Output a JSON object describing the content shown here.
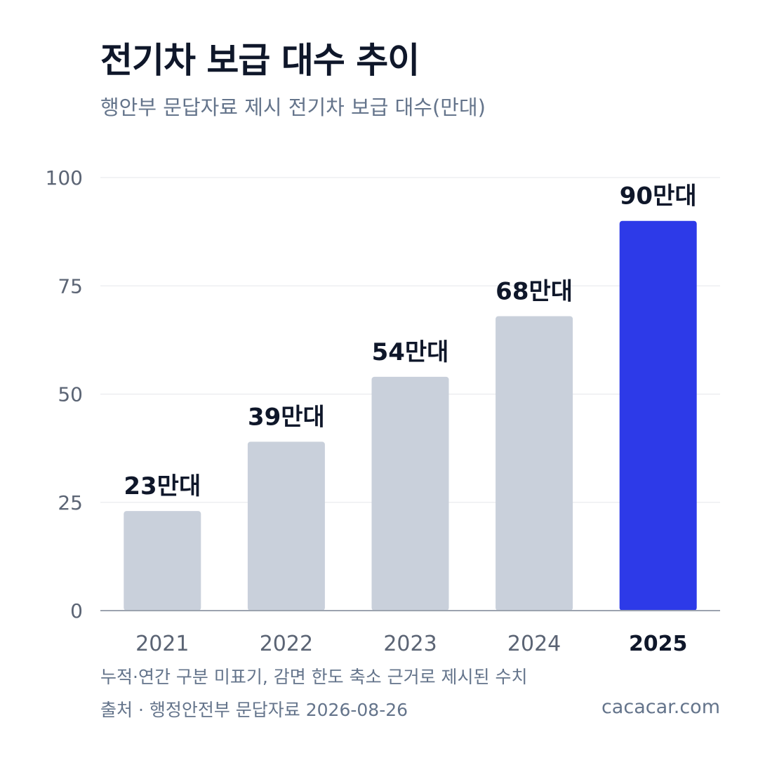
{
  "header": {
    "title": "전기차 보급 대수 추이",
    "subtitle": "행안부 문답자료 제시 전기차 보급 대수(만대)"
  },
  "footer": {
    "note": "누적·연간 구분 미표기, 감면 한도 축소 근거로 제시된 수치",
    "source": "출처 · 행정안전부 문답자료 2026-08-26",
    "brand": "cacacar.com"
  },
  "colors": {
    "bar_default": "#c9d0db",
    "bar_highlight": "#2d3ae8",
    "grid": "#e5e7eb",
    "axis": "#9ca3af",
    "tick_label": "#5b6474",
    "value_label": "#0f172a"
  },
  "chart_data": {
    "type": "bar",
    "categories": [
      "2021",
      "2022",
      "2023",
      "2024",
      "2025"
    ],
    "values": [
      23,
      39,
      54,
      68,
      90
    ],
    "value_labels": [
      "23만대",
      "39만대",
      "54만대",
      "68만대",
      "90만대"
    ],
    "highlight_index": 4,
    "ylim": [
      0,
      100
    ],
    "yticks": [
      0,
      25,
      50,
      75,
      100
    ],
    "grid": true,
    "xlabel": "",
    "ylabel": ""
  }
}
